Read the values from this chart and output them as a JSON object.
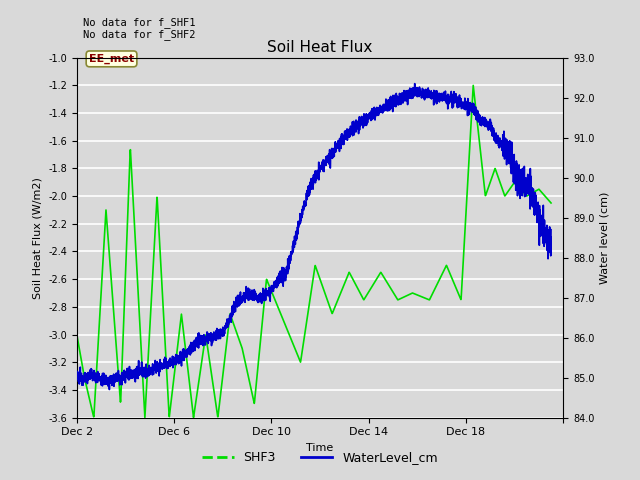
{
  "title": "Soil Heat Flux",
  "xlabel": "Time",
  "ylabel_left": "Soil Heat Flux (W/m2)",
  "ylabel_right": "Water level (cm)",
  "no_data_text1": "No data for f_SHF1",
  "no_data_text2": "No data for f_SHF2",
  "ee_met_label": "EE_met",
  "xlim": [
    0,
    20
  ],
  "ylim_left": [
    -3.6,
    -1.0
  ],
  "ylim_right": [
    84.0,
    93.0
  ],
  "yticks_left": [
    -3.6,
    -3.4,
    -3.2,
    -3.0,
    -2.8,
    -2.6,
    -2.4,
    -2.2,
    -2.0,
    -1.8,
    -1.6,
    -1.4,
    -1.2,
    -1.0
  ],
  "yticks_right": [
    84.0,
    85.0,
    86.0,
    87.0,
    88.0,
    89.0,
    90.0,
    91.0,
    92.0,
    93.0
  ],
  "background_color": "#d9d9d9",
  "plot_bg_color": "#d9d9d9",
  "grid_color": "#ffffff",
  "shf3_color": "#00dd00",
  "water_color": "#0000cc",
  "legend_shf3": "SHF3",
  "legend_water": "WaterLevel_cm"
}
